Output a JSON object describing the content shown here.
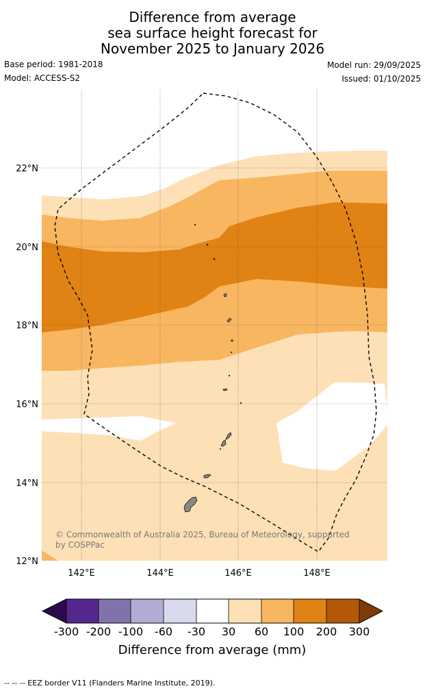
{
  "title": {
    "line1": "Difference from average",
    "line2": "sea surface height forecast for",
    "line3": "November 2025 to January 2026"
  },
  "meta": {
    "base_period": "Base period: 1981-2018",
    "model": "Model: ACCESS-S2",
    "model_run": "Model run: 29/09/2025",
    "issued": "Issued: 01/10/2025"
  },
  "map": {
    "lat_labels": [
      "22°N",
      "20°N",
      "18°N",
      "16°N",
      "14°N",
      "12°N"
    ],
    "lon_labels": [
      "142°E",
      "144°E",
      "146°E",
      "148°E"
    ],
    "copyright_line1": "© Commonwealth of Australia 2025, Bureau of Meteorology, supported",
    "copyright_line2": "by COSPPac"
  },
  "colorbar": {
    "ticks": [
      "-300",
      "-200",
      "-100",
      "-60",
      "-30",
      "30",
      "60",
      "100",
      "200",
      "300"
    ],
    "label": "Difference from average (mm)",
    "colors": {
      "lt_neg300": "#2d0a4b",
      "n300_n200": "#54278f",
      "n200_n100": "#8073ac",
      "n100_n60": "#b2abd2",
      "n60_n30": "#d8daeb",
      "n30_p30": "#ffffff",
      "p30_p60": "#fee0b6",
      "p60_p100": "#f9b660",
      "p100_p200": "#e08214",
      "p200_p300": "#b35806",
      "gt_p300": "#7f3b08"
    }
  },
  "footer": "--  --  -- EEZ border V11 (Flanders Marine Institute, 2019)."
}
